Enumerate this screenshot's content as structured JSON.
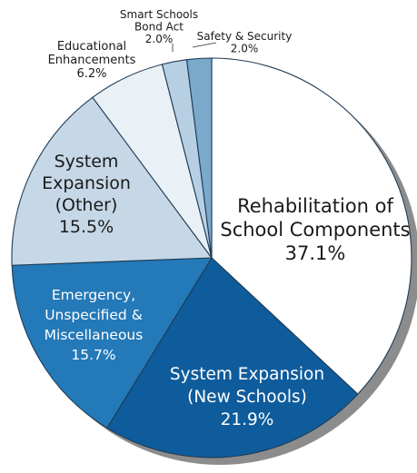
{
  "chart_data": {
    "type": "pie",
    "title": "",
    "slices": [
      {
        "label": "Rehabilitation of School Components",
        "label_lines": [
          "Rehabilitation of",
          "School Components"
        ],
        "value_text": "37.1%",
        "value": 37.1,
        "color": "#ffffff",
        "text_color": "#1a1a1a"
      },
      {
        "label": "System Expansion (New Schools)",
        "label_lines": [
          "System Expansion",
          "(New Schools)"
        ],
        "value_text": "21.9%",
        "value": 21.9,
        "color": "#0f5c9c",
        "text_color": "#ffffff"
      },
      {
        "label": "Emergency, Unspecified & Miscellaneous",
        "label_lines": [
          "Emergency,",
          "Unspecified &",
          "Miscellaneous"
        ],
        "value_text": "15.7%",
        "value": 15.7,
        "color": "#2479b8",
        "text_color": "#ffffff"
      },
      {
        "label": "System Expansion (Other)",
        "label_lines": [
          "System",
          "Expansion",
          "(Other)"
        ],
        "value_text": "15.5%",
        "value": 15.5,
        "color": "#c6d8e7",
        "text_color": "#1a1a1a"
      },
      {
        "label": "Educational Enhancements",
        "label_lines": [
          "Educational",
          "Enhancements"
        ],
        "value_text": "6.2%",
        "value": 6.2,
        "color": "#eaf1f6",
        "text_color": "#1a1a1a"
      },
      {
        "label": "Smart Schools Bond Act",
        "label_lines": [
          "Smart Schools",
          "Bond Act"
        ],
        "value_text": "2.0%",
        "value": 2.0,
        "color": "#b7cfe2",
        "text_color": "#1a1a1a"
      },
      {
        "label": "Safety & Security",
        "label_lines": [
          "Safety & Security"
        ],
        "value_text": "2.0%",
        "value": 2.0,
        "color": "#7aa9cc",
        "text_color": "#1a1a1a"
      }
    ]
  }
}
